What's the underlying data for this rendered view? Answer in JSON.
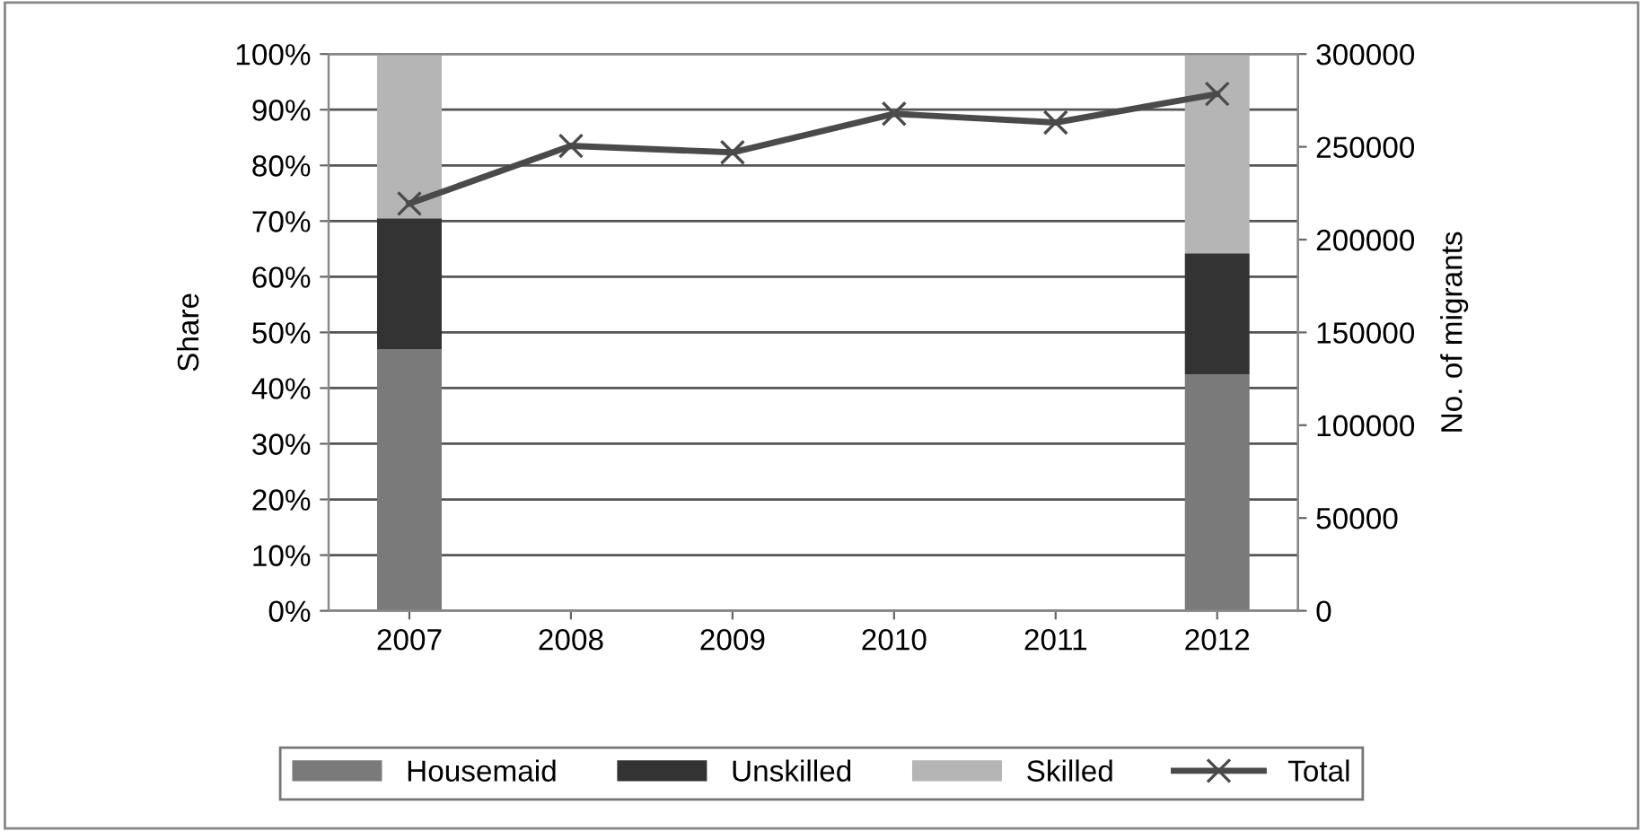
{
  "chart_data": {
    "type": "bar",
    "stacked": true,
    "ylabel": "Share",
    "y2label": "No. of migrants",
    "categories": [
      "2007",
      "2008",
      "2009",
      "2010",
      "2011",
      "2012"
    ],
    "series": [
      {
        "name": "Housemaid",
        "color": "#7a7a7a",
        "values": [
          47,
          null,
          null,
          null,
          null,
          42.5
        ]
      },
      {
        "name": "Unskilled",
        "color": "#333333",
        "values": [
          23.5,
          null,
          null,
          null,
          null,
          21.7
        ]
      },
      {
        "name": "Skilled",
        "color": "#b5b5b5",
        "values": [
          29.5,
          null,
          null,
          null,
          null,
          35.8
        ]
      },
      {
        "name": "Total",
        "type": "line",
        "axis": "y2",
        "marker": "cross",
        "color": "#4a4a4a",
        "values": [
          219400,
          250500,
          247000,
          267800,
          263100,
          278500
        ]
      }
    ],
    "ylim": [
      0,
      100
    ],
    "yticks": [
      {
        "value": 0,
        "label": "0%"
      },
      {
        "value": 10,
        "label": "10%"
      },
      {
        "value": 20,
        "label": "20%"
      },
      {
        "value": 30,
        "label": "30%"
      },
      {
        "value": 40,
        "label": "40%"
      },
      {
        "value": 50,
        "label": "50%"
      },
      {
        "value": 60,
        "label": "60%"
      },
      {
        "value": 70,
        "label": "70%"
      },
      {
        "value": 80,
        "label": "80%"
      },
      {
        "value": 90,
        "label": "90%"
      },
      {
        "value": 100,
        "label": "100%"
      }
    ],
    "y2lim": [
      0,
      300000
    ],
    "y2ticks": [
      0,
      50000,
      100000,
      150000,
      200000,
      250000,
      300000
    ],
    "grid": "y",
    "legend": "bottom"
  }
}
